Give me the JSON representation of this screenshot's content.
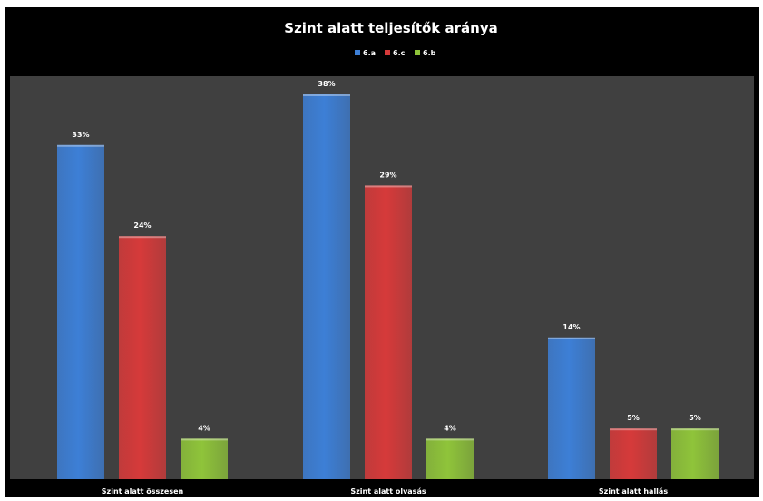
{
  "chart_data": {
    "type": "bar",
    "title": "Szint alatt teljesítők aránya",
    "categories": [
      "Szint alatt összesen",
      "Szint alatt olvasás",
      "Szint alatt hallás"
    ],
    "series": [
      {
        "name": "6.a",
        "values": [
          33,
          38,
          14
        ],
        "labels": [
          "33%",
          "38%",
          "14%"
        ],
        "color": "#3d7fd6"
      },
      {
        "name": "6.c",
        "values": [
          24,
          29,
          5
        ],
        "labels": [
          "24%",
          "29%",
          "5%"
        ],
        "color": "#d63a3a"
      },
      {
        "name": "6.b",
        "values": [
          4,
          4,
          5
        ],
        "labels": [
          "4%",
          "4%",
          "5%"
        ],
        "color": "#8fc43a"
      }
    ],
    "ylim": [
      0,
      38
    ],
    "legend_position": "top",
    "grid": false,
    "colors": {
      "background": "#000000",
      "plot_area": "#404040",
      "text": "#ffffff"
    }
  }
}
